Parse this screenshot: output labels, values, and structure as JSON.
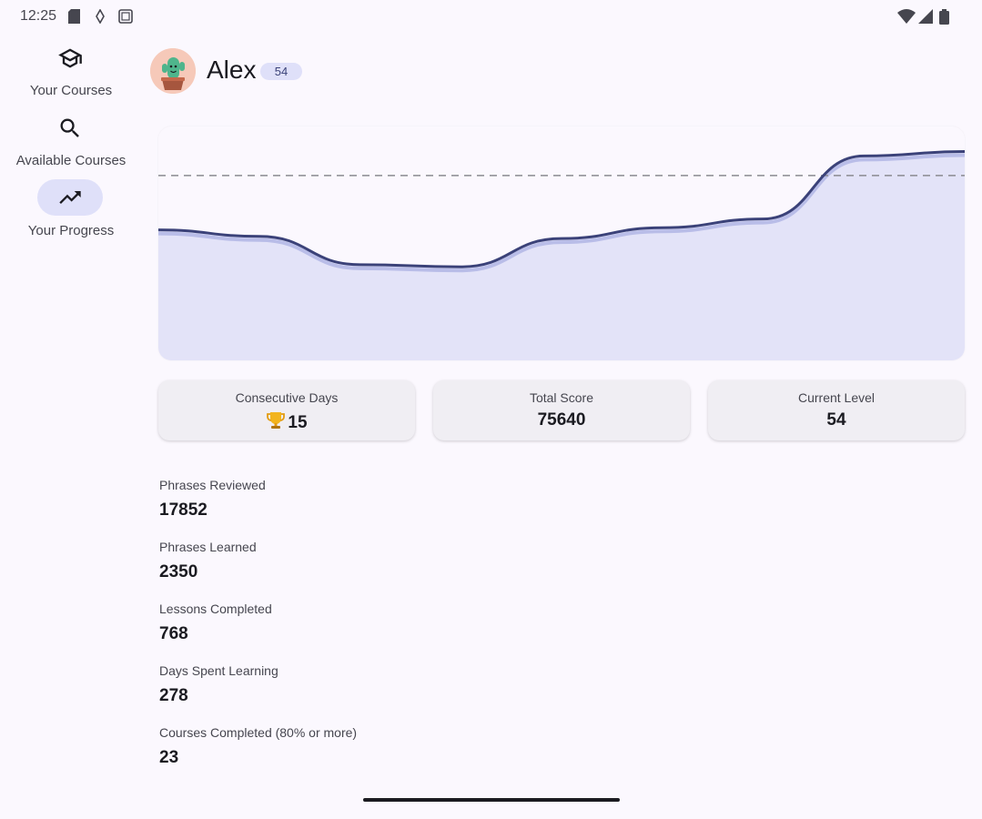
{
  "status_bar": {
    "time": "12:25",
    "left_icons": [
      "sim-card-icon",
      "data-saver-icon",
      "screenshot-icon"
    ],
    "right_icons": [
      "wifi-icon",
      "cell-signal-icon",
      "battery-icon"
    ]
  },
  "nav": {
    "items": [
      {
        "label": "Your Courses",
        "icon": "school-icon",
        "active": false
      },
      {
        "label": "Available Courses",
        "icon": "search-icon",
        "active": false
      },
      {
        "label": "Your Progress",
        "icon": "trending-up-icon",
        "active": true
      }
    ]
  },
  "profile": {
    "name": "Alex",
    "level_badge": "54",
    "avatar_icon": "cactus-avatar-icon"
  },
  "chart_data": {
    "type": "area",
    "title": "",
    "xlabel": "",
    "ylabel": "",
    "grid": false,
    "legend": "none",
    "series": [
      {
        "values": [
          0.6,
          0.57,
          0.44,
          0.43,
          0.56,
          0.61,
          0.65,
          0.94,
          0.96
        ]
      }
    ],
    "reference_line": 0.85,
    "ylim": [
      0,
      1
    ],
    "colors": {
      "line": "#3b4279",
      "fill": "#e3e3f8",
      "shadow": "#b9bde8",
      "reference": "#8a8a90"
    }
  },
  "stats": [
    {
      "label": "Consecutive Days",
      "icon": "trophy-icon",
      "value": "15"
    },
    {
      "label": "Total Score",
      "value": "75640"
    },
    {
      "label": "Current Level",
      "value": "54"
    }
  ],
  "metrics": [
    {
      "label": "Phrases Reviewed",
      "value": "17852"
    },
    {
      "label": "Phrases Learned",
      "value": "2350"
    },
    {
      "label": "Lessons Completed",
      "value": "768"
    },
    {
      "label": "Days Spent Learning",
      "value": "278"
    },
    {
      "label": "Courses Completed (80% or more)",
      "value": "23"
    }
  ]
}
